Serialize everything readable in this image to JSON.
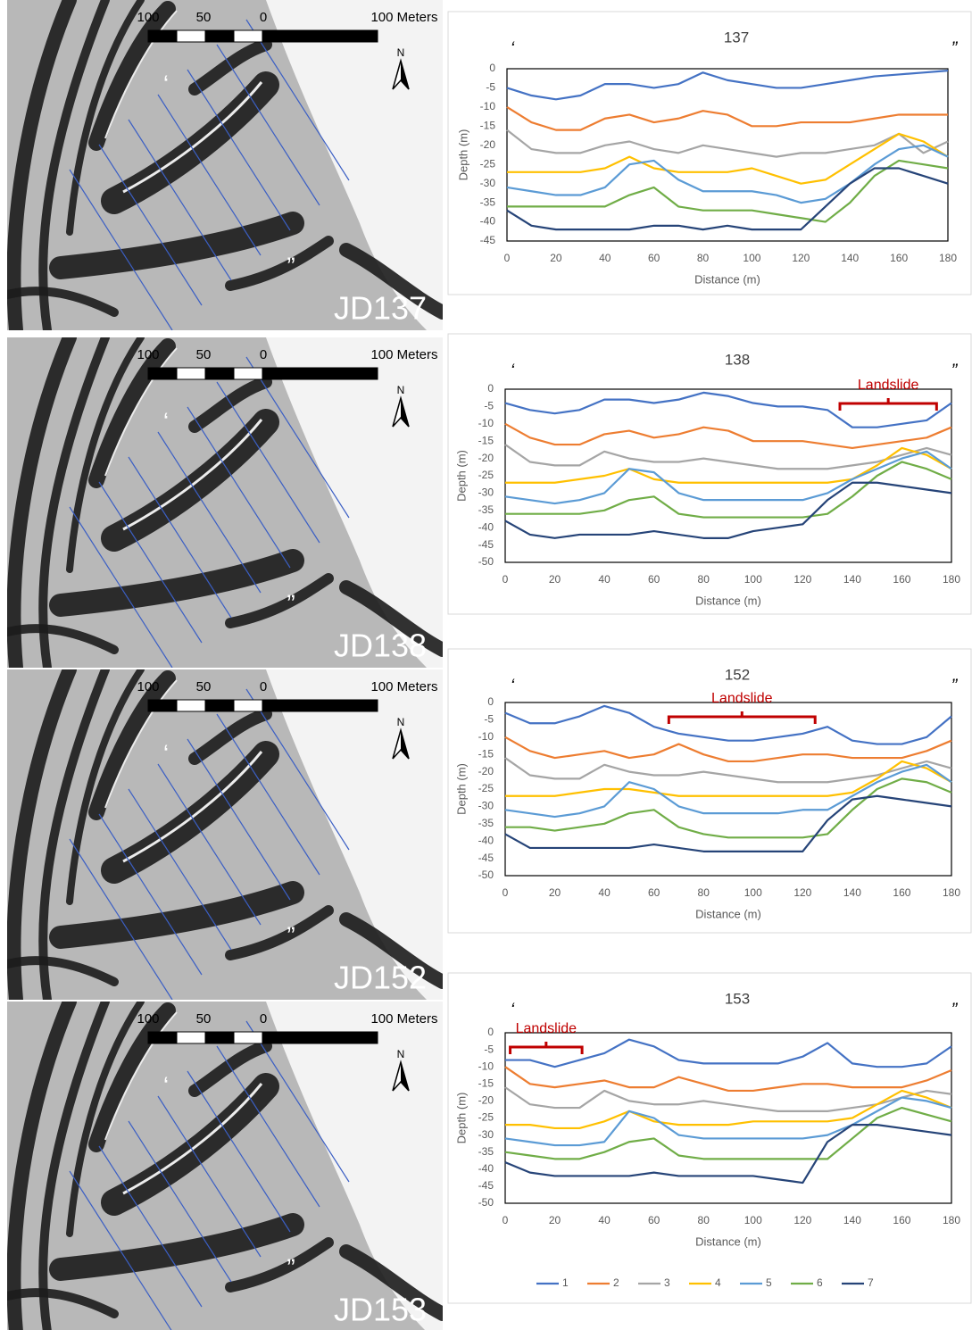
{
  "maps": [
    {
      "scale_labels": [
        "100",
        "50",
        "0",
        "100 Meters"
      ],
      "north": "N",
      "start_label": "‘",
      "end_label": "”",
      "label": "JD137"
    },
    {
      "scale_labels": [
        "100",
        "50",
        "0",
        "100 Meters"
      ],
      "north": "N",
      "start_label": "‘",
      "end_label": "”",
      "label": "JD138"
    },
    {
      "scale_labels": [
        "100",
        "50",
        "0",
        "100 Meters"
      ],
      "north": "N",
      "start_label": "‘",
      "end_label": "”",
      "label": "JD152"
    },
    {
      "scale_labels": [
        "100",
        "50",
        "0",
        "100 Meters"
      ],
      "north": "N",
      "start_label": "‘",
      "end_label": "”",
      "label": "JD153"
    }
  ],
  "chart_data": [
    {
      "type": "line",
      "title": "137",
      "start_label": "‘",
      "end_label": "”",
      "x_label": "Distance (m)",
      "y_label": "Depth (m)",
      "xlim": [
        0,
        180
      ],
      "xticks": [
        0,
        20,
        40,
        60,
        80,
        100,
        120,
        140,
        160,
        180
      ],
      "ylim": [
        -45,
        0
      ],
      "yticks": [
        0,
        -5,
        -10,
        -15,
        -20,
        -25,
        -30,
        -35,
        -40,
        -45
      ],
      "legend": false,
      "x": [
        0,
        10,
        20,
        30,
        40,
        50,
        60,
        70,
        80,
        90,
        100,
        110,
        120,
        130,
        140,
        150,
        160,
        170,
        180
      ],
      "series": [
        {
          "name": "1",
          "color": "#4472c4",
          "values": [
            -5,
            -7,
            -8,
            -7,
            -4,
            -4,
            -5,
            -4,
            -1,
            -3,
            -4,
            -5,
            -5,
            -4,
            -3,
            -2,
            -1.5,
            -1,
            -0.5
          ]
        },
        {
          "name": "2",
          "color": "#ed7d31",
          "values": [
            -10,
            -14,
            -16,
            -16,
            -13,
            -12,
            -14,
            -13,
            -11,
            -12,
            -15,
            -15,
            -14,
            -14,
            -14,
            -13,
            -12,
            -12,
            -12
          ]
        },
        {
          "name": "3",
          "color": "#a5a5a5",
          "values": [
            -16,
            -21,
            -22,
            -22,
            -20,
            -19,
            -21,
            -22,
            -20,
            -21,
            -22,
            -23,
            -22,
            -22,
            -21,
            -20,
            -17,
            -22,
            -19
          ]
        },
        {
          "name": "4",
          "color": "#ffc000",
          "values": [
            -27,
            -27,
            -27,
            -27,
            -26,
            -23,
            -26,
            -27,
            -27,
            -27,
            -26,
            -28,
            -30,
            -29,
            -25,
            -21,
            -17,
            -19,
            -23
          ]
        },
        {
          "name": "5",
          "color": "#5b9bd5",
          "values": [
            -31,
            -32,
            -33,
            -33,
            -31,
            -25,
            -24,
            -29,
            -32,
            -32,
            -32,
            -33,
            -35,
            -34,
            -30,
            -25,
            -21,
            -20,
            -23
          ]
        },
        {
          "name": "6",
          "color": "#70ad47",
          "values": [
            -36,
            -36,
            -36,
            -36,
            -36,
            -33,
            -31,
            -36,
            -37,
            -37,
            -37,
            -38,
            -39,
            -40,
            -35,
            -28,
            -24,
            -25,
            -26
          ]
        },
        {
          "name": "7",
          "color": "#264478",
          "values": [
            -37,
            -41,
            -42,
            -42,
            -42,
            -42,
            -41,
            -41,
            -42,
            -41,
            -42,
            -42,
            -42,
            -36,
            -30,
            -26,
            -26,
            -28,
            -30
          ]
        }
      ]
    },
    {
      "type": "line",
      "title": "138",
      "start_label": "‘",
      "end_label": "”",
      "x_label": "Distance (m)",
      "y_label": "Depth (m)",
      "xlim": [
        0,
        180
      ],
      "xticks": [
        0,
        20,
        40,
        60,
        80,
        100,
        120,
        140,
        160,
        180
      ],
      "ylim": [
        -50,
        0
      ],
      "yticks": [
        0,
        -5,
        -10,
        -15,
        -20,
        -25,
        -30,
        -35,
        -40,
        -45,
        -50
      ],
      "legend": false,
      "annotations": [
        {
          "text": "Landslide",
          "x": [
            135,
            174
          ]
        }
      ],
      "x": [
        0,
        10,
        20,
        30,
        40,
        50,
        60,
        70,
        80,
        90,
        100,
        110,
        120,
        130,
        140,
        150,
        160,
        170,
        180
      ],
      "series": [
        {
          "name": "1",
          "color": "#4472c4",
          "values": [
            -4,
            -6,
            -7,
            -6,
            -3,
            -3,
            -4,
            -3,
            -1,
            -2,
            -4,
            -5,
            -5,
            -6,
            -11,
            -11,
            -10,
            -9,
            -4
          ]
        },
        {
          "name": "2",
          "color": "#ed7d31",
          "values": [
            -10,
            -14,
            -16,
            -16,
            -13,
            -12,
            -14,
            -13,
            -11,
            -12,
            -15,
            -15,
            -15,
            -16,
            -17,
            -16,
            -15,
            -14,
            -11
          ]
        },
        {
          "name": "3",
          "color": "#a5a5a5",
          "values": [
            -16,
            -21,
            -22,
            -22,
            -18,
            -20,
            -21,
            -21,
            -20,
            -21,
            -22,
            -23,
            -23,
            -23,
            -22,
            -21,
            -19,
            -17,
            -19
          ]
        },
        {
          "name": "4",
          "color": "#ffc000",
          "values": [
            -27,
            -27,
            -27,
            -26,
            -25,
            -23,
            -26,
            -27,
            -27,
            -27,
            -27,
            -27,
            -27,
            -27,
            -26,
            -22,
            -17,
            -19,
            -23
          ]
        },
        {
          "name": "5",
          "color": "#5b9bd5",
          "values": [
            -31,
            -32,
            -33,
            -32,
            -30,
            -23,
            -24,
            -30,
            -32,
            -32,
            -32,
            -32,
            -32,
            -30,
            -26,
            -23,
            -20,
            -18,
            -23
          ]
        },
        {
          "name": "6",
          "color": "#70ad47",
          "values": [
            -36,
            -36,
            -36,
            -36,
            -35,
            -32,
            -31,
            -36,
            -37,
            -37,
            -37,
            -37,
            -37,
            -36,
            -31,
            -25,
            -21,
            -23,
            -26
          ]
        },
        {
          "name": "7",
          "color": "#264478",
          "values": [
            -38,
            -42,
            -43,
            -42,
            -42,
            -42,
            -41,
            -42,
            -43,
            -43,
            -41,
            -40,
            -39,
            -32,
            -27,
            -27,
            -28,
            -29,
            -30
          ]
        }
      ]
    },
    {
      "type": "line",
      "title": "152",
      "start_label": "‘",
      "end_label": "”",
      "x_label": "Distance (m)",
      "y_label": "Depth (m)",
      "xlim": [
        0,
        180
      ],
      "xticks": [
        0,
        20,
        40,
        60,
        80,
        100,
        120,
        140,
        160,
        180
      ],
      "ylim": [
        -50,
        0
      ],
      "yticks": [
        0,
        -5,
        -10,
        -15,
        -20,
        -25,
        -30,
        -35,
        -40,
        -45,
        -50
      ],
      "legend": false,
      "annotations": [
        {
          "text": "Landslide",
          "x": [
            66,
            125
          ]
        }
      ],
      "x": [
        0,
        10,
        20,
        30,
        40,
        50,
        60,
        70,
        80,
        90,
        100,
        110,
        120,
        130,
        140,
        150,
        160,
        170,
        180
      ],
      "series": [
        {
          "name": "1",
          "color": "#4472c4",
          "values": [
            -3,
            -6,
            -6,
            -4,
            -1,
            -3,
            -7,
            -9,
            -10,
            -11,
            -11,
            -10,
            -9,
            -7,
            -11,
            -12,
            -12,
            -10,
            -4
          ]
        },
        {
          "name": "2",
          "color": "#ed7d31",
          "values": [
            -10,
            -14,
            -16,
            -15,
            -14,
            -16,
            -15,
            -12,
            -15,
            -17,
            -17,
            -16,
            -15,
            -15,
            -16,
            -16,
            -16,
            -14,
            -11
          ]
        },
        {
          "name": "3",
          "color": "#a5a5a5",
          "values": [
            -16,
            -21,
            -22,
            -22,
            -18,
            -20,
            -21,
            -21,
            -20,
            -21,
            -22,
            -23,
            -23,
            -23,
            -22,
            -21,
            -19,
            -17,
            -19
          ]
        },
        {
          "name": "4",
          "color": "#ffc000",
          "values": [
            -27,
            -27,
            -27,
            -26,
            -25,
            -25,
            -26,
            -27,
            -27,
            -27,
            -27,
            -27,
            -27,
            -27,
            -26,
            -22,
            -17,
            -19,
            -23
          ]
        },
        {
          "name": "5",
          "color": "#5b9bd5",
          "values": [
            -31,
            -32,
            -33,
            -32,
            -30,
            -23,
            -25,
            -30,
            -32,
            -32,
            -32,
            -32,
            -31,
            -31,
            -27,
            -23,
            -20,
            -18,
            -23
          ]
        },
        {
          "name": "6",
          "color": "#70ad47",
          "values": [
            -36,
            -36,
            -37,
            -36,
            -35,
            -32,
            -31,
            -36,
            -38,
            -39,
            -39,
            -39,
            -39,
            -38,
            -31,
            -25,
            -22,
            -23,
            -26
          ]
        },
        {
          "name": "7",
          "color": "#264478",
          "values": [
            -38,
            -42,
            -42,
            -42,
            -42,
            -42,
            -41,
            -42,
            -43,
            -43,
            -43,
            -43,
            -43,
            -34,
            -28,
            -27,
            -28,
            -29,
            -30
          ]
        }
      ]
    },
    {
      "type": "line",
      "title": "153",
      "start_label": "‘",
      "end_label": "”",
      "x_label": "Distance (m)",
      "y_label": "Depth (m)",
      "xlim": [
        0,
        180
      ],
      "xticks": [
        0,
        20,
        40,
        60,
        80,
        100,
        120,
        140,
        160,
        180
      ],
      "ylim": [
        -50,
        0
      ],
      "yticks": [
        0,
        -5,
        -10,
        -15,
        -20,
        -25,
        -30,
        -35,
        -40,
        -45,
        -50
      ],
      "legend": "bottom",
      "annotations": [
        {
          "text": "Landslide",
          "x": [
            2,
            31
          ]
        }
      ],
      "x": [
        0,
        10,
        20,
        30,
        40,
        50,
        60,
        70,
        80,
        90,
        100,
        110,
        120,
        130,
        140,
        150,
        160,
        170,
        180
      ],
      "series": [
        {
          "name": "1",
          "color": "#4472c4",
          "values": [
            -8,
            -8,
            -10,
            -8,
            -6,
            -2,
            -4,
            -8,
            -9,
            -9,
            -9,
            -9,
            -7,
            -3,
            -9,
            -10,
            -10,
            -9,
            -4
          ]
        },
        {
          "name": "2",
          "color": "#ed7d31",
          "values": [
            -10,
            -15,
            -16,
            -15,
            -14,
            -16,
            -16,
            -13,
            -15,
            -17,
            -17,
            -16,
            -15,
            -15,
            -16,
            -16,
            -16,
            -14,
            -11
          ]
        },
        {
          "name": "3",
          "color": "#a5a5a5",
          "values": [
            -16,
            -21,
            -22,
            -22,
            -17,
            -20,
            -21,
            -21,
            -20,
            -21,
            -22,
            -23,
            -23,
            -23,
            -22,
            -21,
            -19,
            -17,
            -18
          ]
        },
        {
          "name": "4",
          "color": "#ffc000",
          "values": [
            -27,
            -27,
            -28,
            -28,
            -26,
            -23,
            -26,
            -27,
            -27,
            -27,
            -26,
            -26,
            -26,
            -26,
            -25,
            -21,
            -17,
            -19,
            -22
          ]
        },
        {
          "name": "5",
          "color": "#5b9bd5",
          "values": [
            -31,
            -32,
            -33,
            -33,
            -32,
            -23,
            -25,
            -30,
            -31,
            -31,
            -31,
            -31,
            -31,
            -30,
            -27,
            -23,
            -19,
            -20,
            -22
          ]
        },
        {
          "name": "6",
          "color": "#70ad47",
          "values": [
            -35,
            -36,
            -37,
            -37,
            -35,
            -32,
            -31,
            -36,
            -37,
            -37,
            -37,
            -37,
            -37,
            -37,
            -31,
            -25,
            -22,
            -24,
            -26
          ]
        },
        {
          "name": "7",
          "color": "#264478",
          "values": [
            -38,
            -41,
            -42,
            -42,
            -42,
            -42,
            -41,
            -42,
            -42,
            -42,
            -42,
            -43,
            -44,
            -32,
            -27,
            -27,
            -28,
            -29,
            -30
          ]
        }
      ]
    }
  ]
}
